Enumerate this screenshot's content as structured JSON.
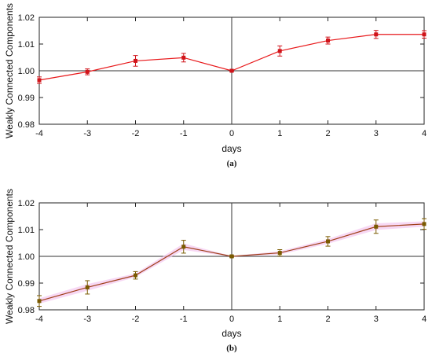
{
  "chart_data": [
    {
      "type": "line",
      "caption": "(a)",
      "xlabel": "days",
      "ylabel": "Weakly Connected Components",
      "x": [
        -4,
        -3,
        -2,
        -1,
        0,
        1,
        2,
        3,
        4
      ],
      "xlim": [
        -4,
        4
      ],
      "ylim": [
        0.98,
        1.02
      ],
      "xticks": [
        "-4",
        "-3",
        "-2",
        "-1",
        "0",
        "1",
        "2",
        "3",
        "4"
      ],
      "yticks": [
        "0.98",
        "0.99",
        "1.00",
        "1.01",
        "1.02"
      ],
      "reference_lines": {
        "x": 0,
        "y": 1.0
      },
      "grid": false,
      "series": [
        {
          "color": "#e8191b",
          "marker_color": "#d0141a",
          "values": [
            0.9965,
            0.9996,
            1.0037,
            1.0049,
            1.0,
            1.0074,
            1.0113,
            1.0136,
            1.0136
          ],
          "error": [
            0.0012,
            0.0011,
            0.002,
            0.0016,
            0.0002,
            0.0019,
            0.0013,
            0.0015,
            0.0014
          ]
        }
      ]
    },
    {
      "type": "line",
      "caption": "(b)",
      "xlabel": "days",
      "ylabel": "Weakly Connected Components",
      "x": [
        -4,
        -3,
        -2,
        -1,
        0,
        1,
        2,
        3,
        4
      ],
      "xlim": [
        -4,
        4
      ],
      "ylim": [
        0.98,
        1.02
      ],
      "xticks": [
        "-4",
        "-3",
        "-2",
        "-1",
        "0",
        "1",
        "2",
        "3",
        "4"
      ],
      "yticks": [
        "0.98",
        "0.99",
        "1.00",
        "1.01",
        "1.02"
      ],
      "reference_lines": {
        "x": 0,
        "y": 1.0
      },
      "grid": false,
      "series": [
        {
          "color": "#a0401a",
          "marker_color": "#7a5a00",
          "band_color": "#f4c8ef",
          "values": [
            0.9833,
            0.9884,
            0.9929,
            1.0036,
            1.0,
            1.0013,
            1.0056,
            1.0111,
            1.0121
          ],
          "error": [
            0.002,
            0.0025,
            0.0014,
            0.0024,
            0.0003,
            0.0012,
            0.0018,
            0.0025,
            0.002
          ]
        }
      ]
    }
  ]
}
